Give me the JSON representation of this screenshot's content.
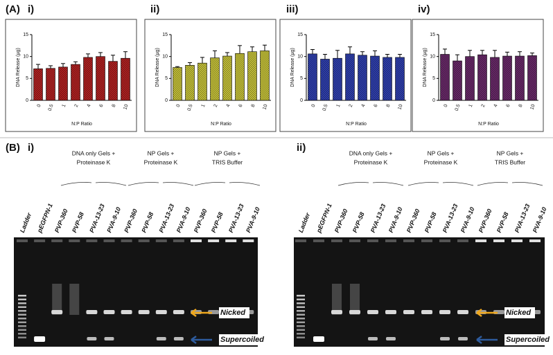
{
  "panel_a": {
    "label": "(A)"
  },
  "chart_data": [
    {
      "type": "bar",
      "title": "i)",
      "ylabel": "DNA Release (µg)",
      "xlabel": "N:P Ratio",
      "categories": [
        "0",
        "0.5",
        "1",
        "2",
        "4",
        "6",
        "8",
        "10"
      ],
      "values": [
        7.2,
        7.3,
        7.6,
        8.2,
        9.8,
        10.0,
        8.9,
        9.6
      ],
      "errors": [
        1.0,
        0.6,
        0.8,
        0.6,
        0.8,
        0.9,
        1.4,
        1.5
      ],
      "color": "#b22222",
      "ylim": [
        0,
        15
      ],
      "yticks": [
        0,
        5,
        10,
        15
      ]
    },
    {
      "type": "bar",
      "title": "ii)",
      "ylabel": "DNA Release (µg)",
      "xlabel": "N:P Ratio",
      "categories": [
        "0",
        "0.5",
        "1",
        "2",
        "4",
        "6",
        "8",
        "10"
      ],
      "values": [
        7.5,
        8.0,
        8.5,
        9.7,
        10.1,
        10.7,
        11.1,
        11.3
      ],
      "errors": [
        0.2,
        0.6,
        1.3,
        1.6,
        0.8,
        1.8,
        1.1,
        1.3
      ],
      "color": "#c8c43a",
      "ylim": [
        0,
        15
      ],
      "yticks": [
        0,
        5,
        10,
        15
      ]
    },
    {
      "type": "bar",
      "title": "iii)",
      "ylabel": "DNA Release (µg)",
      "xlabel": "N:P Ratio",
      "categories": [
        "0",
        "0.5",
        "1",
        "2",
        "4",
        "6",
        "8",
        "10"
      ],
      "values": [
        10.6,
        9.4,
        9.6,
        10.6,
        10.3,
        10.1,
        9.8,
        9.8
      ],
      "errors": [
        1.0,
        1.1,
        1.8,
        1.6,
        0.8,
        1.2,
        0.7,
        0.7
      ],
      "color": "#3040b0",
      "ylim": [
        0,
        15
      ],
      "yticks": [
        0,
        5,
        10,
        15
      ]
    },
    {
      "type": "bar",
      "title": "iv)",
      "ylabel": "DNA Release (µg)",
      "xlabel": "N:P Ratio",
      "categories": [
        "0",
        "0.5",
        "1",
        "2",
        "4",
        "6",
        "8",
        "10"
      ],
      "values": [
        10.5,
        9.0,
        10.0,
        10.4,
        9.8,
        10.1,
        10.1,
        10.2
      ],
      "errors": [
        1.2,
        1.4,
        1.4,
        1.0,
        1.6,
        0.9,
        1.0,
        0.6
      ],
      "color": "#6a2a6a",
      "ylim": [
        0,
        15
      ],
      "yticks": [
        0,
        5,
        10,
        15
      ]
    }
  ],
  "panel_b": {
    "label": "(B)",
    "gels": [
      {
        "title": "i)",
        "groups": [
          [
            "DNA only Gels +",
            "Proteinase K"
          ],
          [
            "NP Gels +",
            "Proteinase K"
          ],
          [
            "NP Gels +",
            "TRIS Buffer"
          ]
        ],
        "lanes": [
          "Ladder",
          "pEGFPN-1",
          "PVP-360",
          "PVP-58",
          "PVA-13-23",
          "PVA-9-10",
          "PVP-360",
          "PVP-58",
          "PVA-13-23",
          "PVA-9-10",
          "PVP-360",
          "PVP-58",
          "PVA-13-23",
          "PVA-9-10"
        ],
        "markers": [
          "Nicked",
          "Supercoiled"
        ]
      },
      {
        "title": "ii)",
        "groups": [
          [
            "DNA only Gels +",
            "Proteinase K"
          ],
          [
            "NP Gels +",
            "Proteinase K"
          ],
          [
            "NP Gels +",
            "TRIS Buffer"
          ]
        ],
        "lanes": [
          "Ladder",
          "pEGFPN-1",
          "PVP-360",
          "PVP-58",
          "PVA-13-23",
          "PVA-9-10",
          "PVP-360",
          "PVP-58",
          "PVA-13-23",
          "PVA-9-10",
          "PVP-360",
          "PVP-58",
          "PVA-13-23",
          "PVA-9-10"
        ],
        "markers": [
          "Nicked",
          "Supercoiled"
        ]
      }
    ]
  }
}
